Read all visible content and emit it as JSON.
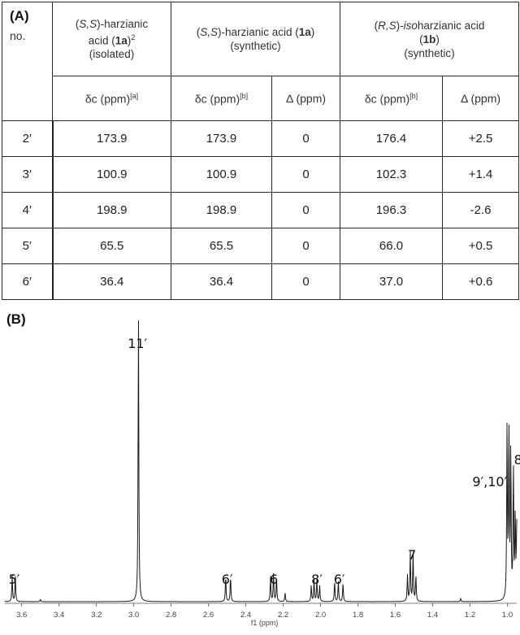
{
  "panel_a": {
    "label": "(A)",
    "no_label": "no.",
    "group1": {
      "config": "S,S",
      "name_pre": "-harzianic",
      "name_acid": "acid (",
      "compound": "1a",
      "ref": "2",
      "note": "(isolated)"
    },
    "group2": {
      "config": "S,S",
      "name": "-harzianic acid (",
      "compound": "1a",
      "close": ")",
      "note": "(synthetic)"
    },
    "group3": {
      "config": "R,S",
      "prefix": "-",
      "iso": "iso",
      "name": "harzianic acid",
      "compound": "1b",
      "note": "(synthetic)"
    },
    "subheaders": {
      "shift": "δc (ppm)",
      "note_a": "[a]",
      "note_b": "[b]",
      "delta": "Δ (ppm)"
    },
    "rows": [
      {
        "no": "2′",
        "iso": "173.9",
        "syn": "173.9",
        "d1": "0",
        "isoshift": "176.4",
        "d2": "+2.5"
      },
      {
        "no": "3′",
        "iso": "100.9",
        "syn": "100.9",
        "d1": "0",
        "isoshift": "102.3",
        "d2": "+1.4"
      },
      {
        "no": "4′",
        "iso": "198.9",
        "syn": "198.9",
        "d1": "0",
        "isoshift": "196.3",
        "d2": "-2.6"
      },
      {
        "no": "5′",
        "iso": "65.5",
        "syn": "65.5",
        "d1": "0",
        "isoshift": "66.0",
        "d2": "+0.5"
      },
      {
        "no": "6′",
        "iso": "36.4",
        "syn": "36.4",
        "d1": "0",
        "isoshift": "37.0",
        "d2": "+0.6"
      }
    ]
  },
  "panel_b": {
    "label": "(B)",
    "axis_title": "f1 (ppm)",
    "x_ticks": [
      "3.6",
      "3.4",
      "3.2",
      "3.0",
      "2.8",
      "2.6",
      "2.4",
      "2.2",
      "2.0",
      "1.8",
      "1.6",
      "1.4",
      "1.2",
      "1.0"
    ],
    "xlim": [
      3.69,
      0.95
    ],
    "peak_labels": [
      {
        "text": "5′",
        "ppm": 3.64
      },
      {
        "text": "11′",
        "ppm": 2.98
      },
      {
        "text": "6′",
        "ppm": 2.5
      },
      {
        "text": "6",
        "ppm": 2.25
      },
      {
        "text": "8′",
        "ppm": 2.02
      },
      {
        "text": "6′",
        "ppm": 1.9
      },
      {
        "text": "7",
        "ppm": 1.51
      },
      {
        "text": "9′,10′",
        "ppm": 0.99
      },
      {
        "text": "8",
        "ppm": 0.96
      }
    ],
    "peaks": [
      {
        "ppm": 3.651,
        "h": 0.09
      },
      {
        "ppm": 3.634,
        "h": 0.09
      },
      {
        "ppm": 3.5,
        "h": 0.008
      },
      {
        "ppm": 2.975,
        "h": 1.0
      },
      {
        "ppm": 2.508,
        "h": 0.09
      },
      {
        "ppm": 2.482,
        "h": 0.09
      },
      {
        "ppm": 2.268,
        "h": 0.085
      },
      {
        "ppm": 2.252,
        "h": 0.1
      },
      {
        "ppm": 2.236,
        "h": 0.085
      },
      {
        "ppm": 2.19,
        "h": 0.03
      },
      {
        "ppm": 2.05,
        "h": 0.055
      },
      {
        "ppm": 2.035,
        "h": 0.075
      },
      {
        "ppm": 2.02,
        "h": 0.075
      },
      {
        "ppm": 2.005,
        "h": 0.055
      },
      {
        "ppm": 1.925,
        "h": 0.07
      },
      {
        "ppm": 1.905,
        "h": 0.07
      },
      {
        "ppm": 1.88,
        "h": 0.065
      },
      {
        "ppm": 1.535,
        "h": 0.09
      },
      {
        "ppm": 1.52,
        "h": 0.17
      },
      {
        "ppm": 1.505,
        "h": 0.17
      },
      {
        "ppm": 1.49,
        "h": 0.09
      },
      {
        "ppm": 1.25,
        "h": 0.01
      },
      {
        "ppm": 1.002,
        "h": 0.58
      },
      {
        "ppm": 0.992,
        "h": 0.6
      },
      {
        "ppm": 0.982,
        "h": 0.52
      },
      {
        "ppm": 0.968,
        "h": 0.46
      },
      {
        "ppm": 0.958,
        "h": 0.29
      },
      {
        "ppm": 0.95,
        "h": 0.25
      }
    ]
  }
}
